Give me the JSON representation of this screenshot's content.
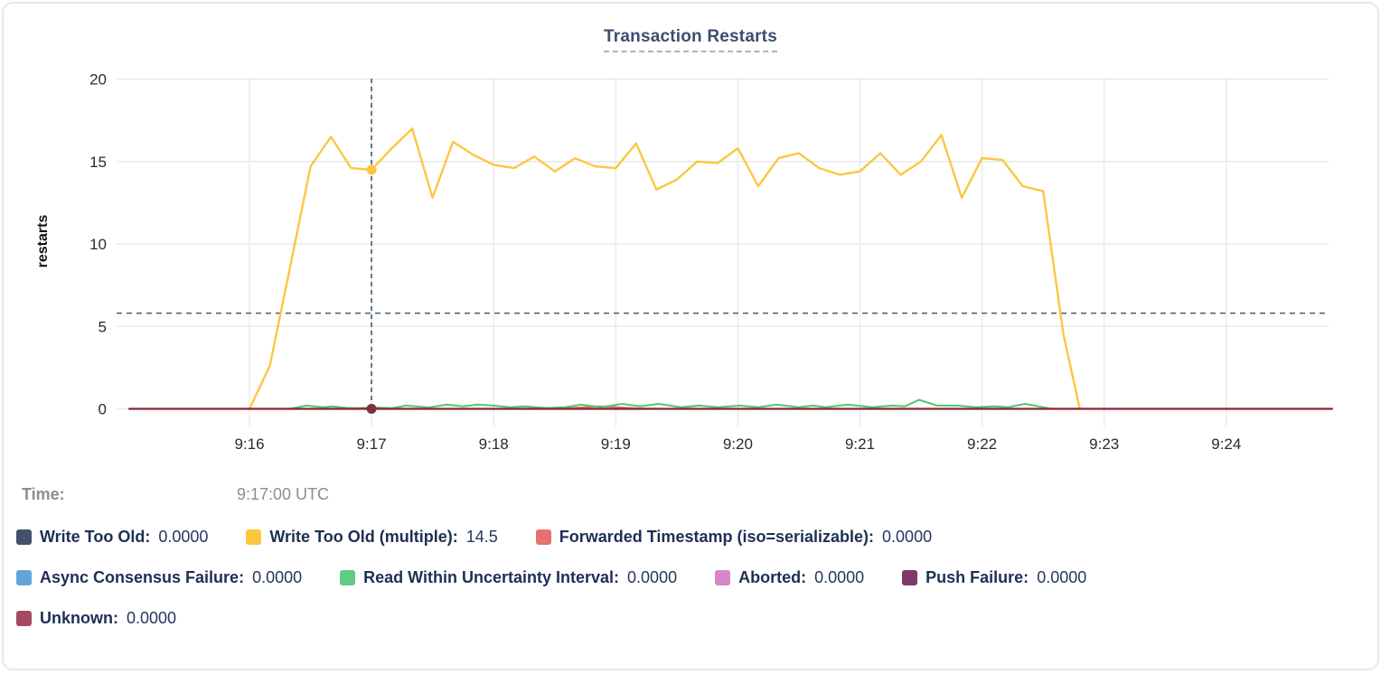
{
  "title": "Transaction Restarts",
  "tooltip": {
    "time_label": "Time:",
    "time_value": "9:17:00 UTC"
  },
  "legend": {
    "rows": [
      [
        {
          "label": "Write Too Old:",
          "value": "0.0000",
          "color": "#44516d"
        },
        {
          "label": "Write Too Old (multiple):",
          "value": "14.5",
          "color": "#fdc640"
        },
        {
          "label": "Forwarded Timestamp (iso=serializable):",
          "value": "0.0000",
          "color": "#e8716d"
        }
      ],
      [
        {
          "label": "Async Consensus Failure:",
          "value": "0.0000",
          "color": "#64a5d9"
        },
        {
          "label": "Read Within Uncertainty Interval:",
          "value": "0.0000",
          "color": "#5ecb87"
        },
        {
          "label": "Aborted:",
          "value": "0.0000",
          "color": "#d489c6"
        },
        {
          "label": "Push Failure:",
          "value": "0.0000",
          "color": "#7c3a67"
        }
      ],
      [
        {
          "label": "Unknown:",
          "value": "0.0000",
          "color": "#a54a60"
        }
      ]
    ]
  },
  "chart_data": {
    "type": "line",
    "title": "Transaction Restarts",
    "xlabel": "",
    "ylabel": "restarts",
    "ylim": [
      0,
      20
    ],
    "yticks": [
      0,
      5,
      10,
      15,
      20
    ],
    "xticks": [
      "9:16",
      "9:17",
      "9:18",
      "9:19",
      "9:20",
      "9:21",
      "9:22",
      "9:23",
      "9:24"
    ],
    "x_window": "9:15 - 9:25 UTC",
    "grid": true,
    "legend_position": "bottom",
    "crosshair": {
      "time": "9:17:00 UTC",
      "vertical_at_sec": 60,
      "horizontal_at_value": 5.8,
      "color": "#3d6075",
      "dots": [
        {
          "sec": 60,
          "value": 14.5,
          "color": "#fdc640",
          "series": "Write Too Old (multiple)"
        },
        {
          "sec": 60,
          "value": 0,
          "color": "#7d2f45",
          "series": "Unknown"
        }
      ]
    },
    "series": [
      {
        "name": "Write Too Old",
        "color": "#44516d",
        "width": 2,
        "points": [
          [
            -59,
            0
          ],
          [
            532,
            0
          ]
        ]
      },
      {
        "name": "Forwarded Timestamp (iso=serializable)",
        "color": "#e8716d",
        "width": 2,
        "points": [
          [
            -59,
            0
          ],
          [
            150,
            0
          ],
          [
            163,
            0.08
          ],
          [
            172,
            0.15
          ],
          [
            181,
            0.1
          ],
          [
            190,
            0.03
          ],
          [
            200,
            0
          ],
          [
            532,
            0
          ]
        ]
      },
      {
        "name": "Async Consensus Failure",
        "color": "#64a5d9",
        "width": 2,
        "points": [
          [
            -59,
            0
          ],
          [
            532,
            0
          ]
        ]
      },
      {
        "name": "Aborted",
        "color": "#d489c6",
        "width": 2,
        "points": [
          [
            -59,
            0
          ],
          [
            532,
            0
          ]
        ]
      },
      {
        "name": "Push Failure",
        "color": "#7c3a67",
        "width": 2,
        "points": [
          [
            -59,
            0
          ],
          [
            532,
            0
          ]
        ]
      },
      {
        "name": "Read Within Uncertainty Interval",
        "color": "#52c470",
        "width": 2,
        "points": [
          [
            20,
            0
          ],
          [
            28,
            0.2
          ],
          [
            36,
            0.1
          ],
          [
            41,
            0.15
          ],
          [
            48,
            0.05
          ],
          [
            55,
            0.05
          ],
          [
            61,
            0.08
          ],
          [
            70,
            0.04
          ],
          [
            77,
            0.2
          ],
          [
            88,
            0.08
          ],
          [
            97,
            0.25
          ],
          [
            105,
            0.15
          ],
          [
            112,
            0.25
          ],
          [
            120,
            0.2
          ],
          [
            128,
            0.1
          ],
          [
            135,
            0.15
          ],
          [
            146,
            0.05
          ],
          [
            155,
            0.1
          ],
          [
            163,
            0.25
          ],
          [
            173,
            0.1
          ],
          [
            183,
            0.3
          ],
          [
            192,
            0.15
          ],
          [
            201,
            0.3
          ],
          [
            212,
            0.1
          ],
          [
            221,
            0.2
          ],
          [
            230,
            0.1
          ],
          [
            241,
            0.2
          ],
          [
            250,
            0.1
          ],
          [
            259,
            0.25
          ],
          [
            270,
            0.1
          ],
          [
            277,
            0.2
          ],
          [
            283,
            0.1
          ],
          [
            294,
            0.25
          ],
          [
            306,
            0.1
          ],
          [
            316,
            0.2
          ],
          [
            322,
            0.15
          ],
          [
            329,
            0.55
          ],
          [
            338,
            0.2
          ],
          [
            348,
            0.2
          ],
          [
            357,
            0.1
          ],
          [
            366,
            0.15
          ],
          [
            373,
            0.1
          ],
          [
            381,
            0.3
          ],
          [
            388,
            0.15
          ],
          [
            394,
            0
          ]
        ]
      },
      {
        "name": "Write Too Old (multiple)",
        "color": "#fdc640",
        "width": 2.4,
        "points": [
          [
            0,
            0
          ],
          [
            10,
            2.6
          ],
          [
            20,
            8.6
          ],
          [
            30,
            14.7
          ],
          [
            40,
            16.5
          ],
          [
            50,
            14.6
          ],
          [
            60,
            14.5
          ],
          [
            70,
            15.8
          ],
          [
            80,
            17.0
          ],
          [
            90,
            12.8
          ],
          [
            100,
            16.2
          ],
          [
            110,
            15.4
          ],
          [
            120,
            14.8
          ],
          [
            130,
            14.6
          ],
          [
            140,
            15.3
          ],
          [
            150,
            14.4
          ],
          [
            160,
            15.2
          ],
          [
            170,
            14.7
          ],
          [
            180,
            14.6
          ],
          [
            190,
            16.1
          ],
          [
            200,
            13.3
          ],
          [
            210,
            13.9
          ],
          [
            220,
            15.0
          ],
          [
            230,
            14.9
          ],
          [
            240,
            15.8
          ],
          [
            250,
            13.5
          ],
          [
            260,
            15.2
          ],
          [
            270,
            15.5
          ],
          [
            280,
            14.6
          ],
          [
            290,
            14.2
          ],
          [
            300,
            14.4
          ],
          [
            310,
            15.5
          ],
          [
            320,
            14.2
          ],
          [
            330,
            15.0
          ],
          [
            340,
            16.6
          ],
          [
            350,
            12.8
          ],
          [
            360,
            15.2
          ],
          [
            370,
            15.1
          ],
          [
            380,
            13.5
          ],
          [
            390,
            13.2
          ],
          [
            400,
            4.5
          ],
          [
            408,
            0
          ]
        ]
      },
      {
        "name": "Unknown",
        "color": "#8b2332",
        "width": 2.2,
        "points": [
          [
            -59,
            0
          ],
          [
            532,
            0
          ]
        ]
      }
    ]
  }
}
